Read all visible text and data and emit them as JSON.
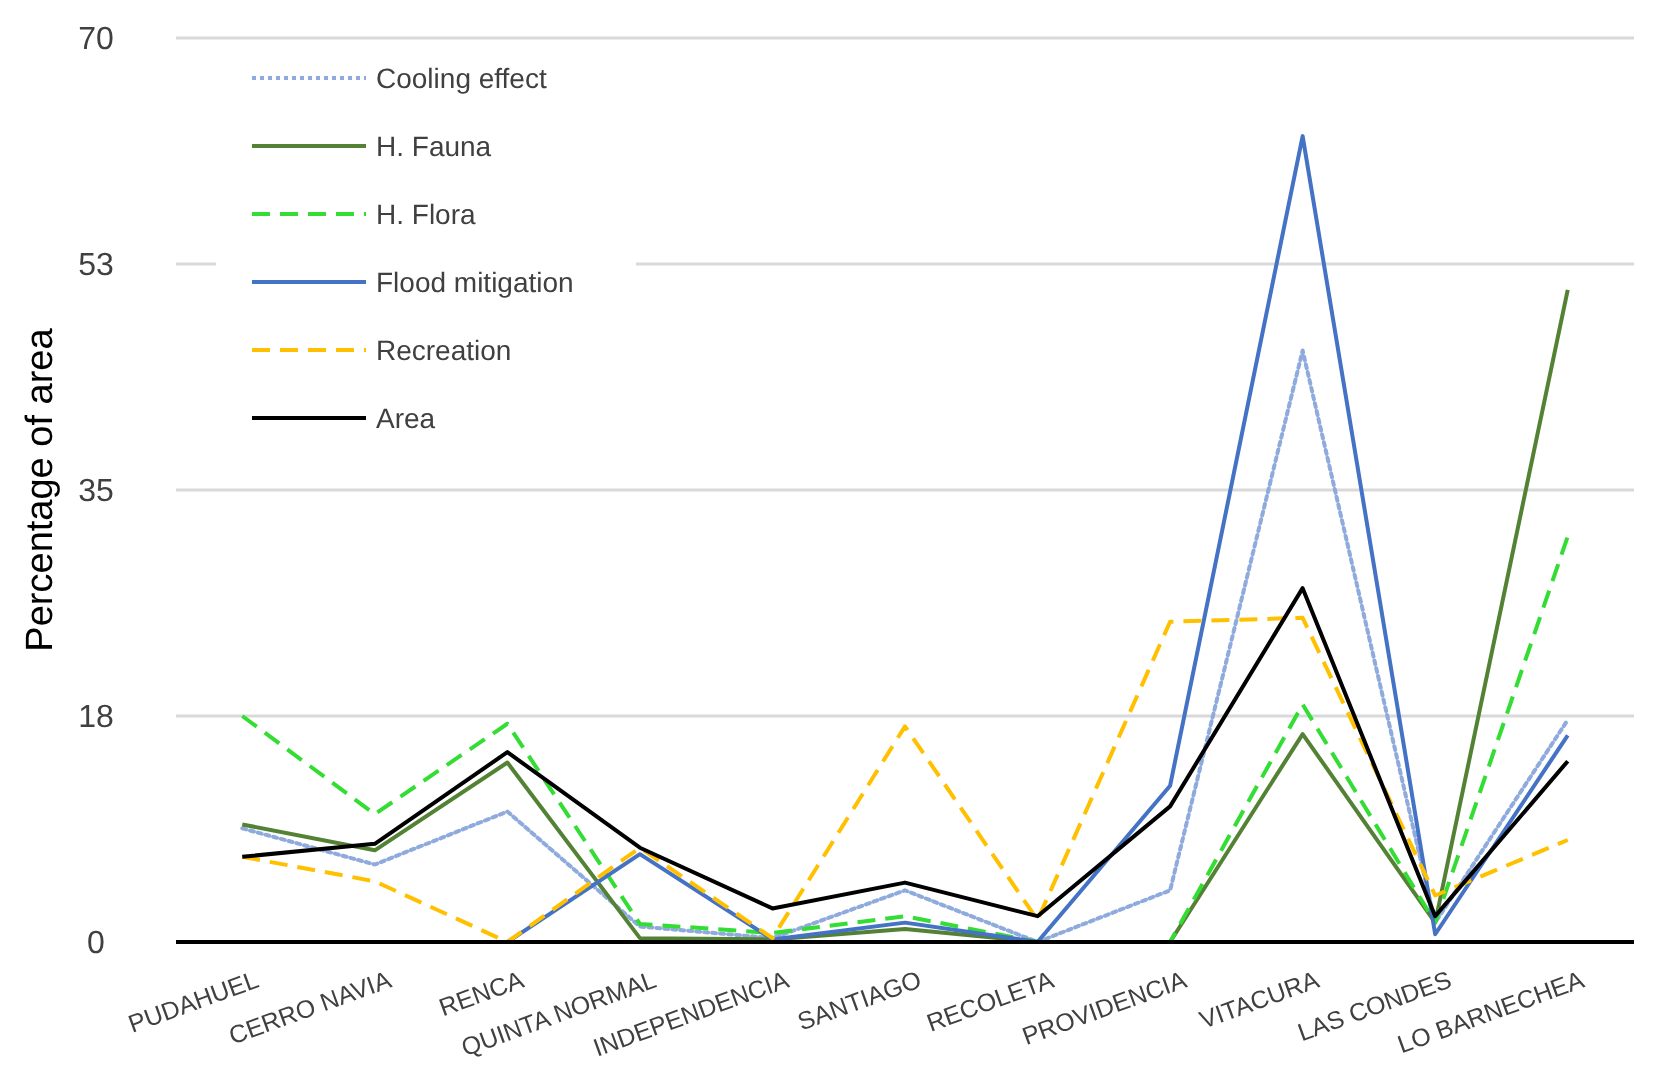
{
  "chart_data": {
    "type": "line",
    "ylabel": "Percentage of area",
    "categories": [
      "PUDAHUEL",
      "CERRO NAVIA",
      "RENCA",
      "QUINTA NORMAL",
      "INDEPENDENCIA",
      "SANTIAGO",
      "RECOLETA",
      "PROVIDENCIA",
      "VITACURA",
      "LAS CONDES",
      "LO BARNECHEA"
    ],
    "series": [
      {
        "name": "Cooling effect",
        "color": "#8faadc",
        "line_style": "dotted",
        "values": [
          8.8,
          6.0,
          10.1,
          1.2,
          0.3,
          4.0,
          0,
          4.0,
          45.8,
          1.5,
          17.2
        ]
      },
      {
        "name": "H. Fauna",
        "color": "#548235",
        "line_style": "solid",
        "values": [
          9.1,
          7.1,
          13.9,
          0.3,
          0.2,
          1.0,
          0,
          0,
          16.1,
          1.5,
          50.5
        ]
      },
      {
        "name": "H. Flora",
        "color": "#33dd33",
        "line_style": "dashed",
        "values": [
          17.5,
          9.9,
          16.9,
          1.4,
          0.7,
          2.0,
          0,
          0,
          18.4,
          1.5,
          31.4
        ]
      },
      {
        "name": "Flood mitigation",
        "color": "#4472c4",
        "line_style": "solid",
        "values": [
          0,
          0,
          0,
          6.8,
          0.2,
          1.5,
          0,
          12.1,
          62.4,
          0.6,
          16.0
        ]
      },
      {
        "name": "Recreation",
        "color": "#ffc000",
        "line_style": "dashed",
        "values": [
          6.6,
          4.7,
          0,
          7.3,
          0.3,
          16.7,
          1.7,
          24.8,
          25.1,
          3.6,
          7.9
        ]
      },
      {
        "name": "Area",
        "color": "#000000",
        "line_style": "solid",
        "values": [
          6.6,
          7.6,
          14.7,
          7.3,
          2.6,
          4.6,
          2.0,
          10.5,
          27.4,
          2.0,
          14.0
        ]
      }
    ],
    "ylim": [
      0,
      70
    ],
    "yticks": [
      0,
      {
        "value": 17.5,
        "label": "18"
      },
      35,
      {
        "value": 52.5,
        "label": "53"
      },
      70
    ],
    "grid": "y",
    "legend": "top left",
    "marker": "none"
  }
}
